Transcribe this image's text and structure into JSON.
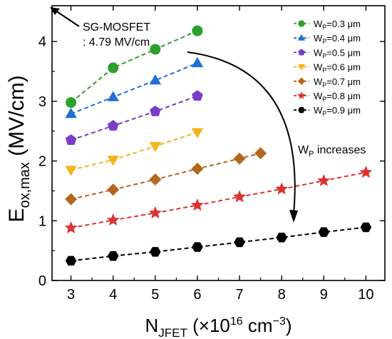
{
  "chart_data": {
    "type": "scatter",
    "ylabel": "E",
    "ylabel_sub": "ox,max",
    "ylabel_unit": " (MV/cm)",
    "xlabel": "N",
    "xlabel_sub": "JFET",
    "xlabel_unit_prefix": " (×10",
    "xlabel_unit_exp": "16",
    "xlabel_unit_mid": " cm",
    "xlabel_unit_exp2": "−3",
    "xlabel_unit_suffix": ")",
    "xlim": [
      2.55,
      10.45
    ],
    "ylim": [
      0,
      4.6
    ],
    "x_ticks": [
      3,
      4,
      5,
      6,
      7,
      8,
      9,
      10
    ],
    "y_ticks": [
      0,
      1,
      2,
      3,
      4
    ],
    "annotation": {
      "line1": "SG-MOSFET",
      "line2": ": 4.79 MV/cm"
    },
    "arrow_label": "W",
    "arrow_label_sub": "P",
    "arrow_label_rest": " increases",
    "legend_prefix": "W",
    "legend_sub": "P",
    "series": [
      {
        "name": "=0.3 μm",
        "color": "#2ca02c",
        "marker": "circle",
        "x": [
          3,
          4,
          5,
          6
        ],
        "y": [
          2.98,
          3.56,
          3.87,
          4.18
        ]
      },
      {
        "name": "=0.4 μm",
        "color": "#1f6fd1",
        "marker": "triangle-up",
        "x": [
          3,
          4,
          5,
          6
        ],
        "y": [
          2.79,
          3.07,
          3.35,
          3.64
        ]
      },
      {
        "name": "=0.5 μm",
        "color": "#7a3cc8",
        "marker": "pentagon",
        "x": [
          3,
          4,
          5,
          6
        ],
        "y": [
          2.35,
          2.59,
          2.83,
          3.09
        ]
      },
      {
        "name": "=0.6 μm",
        "color": "#f2b51a",
        "marker": "triangle-down",
        "x": [
          3,
          4,
          5,
          6
        ],
        "y": [
          1.85,
          2.02,
          2.25,
          2.48
        ]
      },
      {
        "name": "=0.7 μm",
        "color": "#b5661e",
        "marker": "diamond",
        "x": [
          3,
          4,
          5,
          6,
          7,
          7.5
        ],
        "y": [
          1.36,
          1.52,
          1.69,
          1.87,
          2.04,
          2.13
        ]
      },
      {
        "name": "=0.8 μm",
        "color": "#d93434",
        "marker": "star",
        "x": [
          3,
          4,
          5,
          6,
          7,
          8,
          9,
          10
        ],
        "y": [
          0.88,
          1.01,
          1.13,
          1.26,
          1.4,
          1.53,
          1.67,
          1.81
        ]
      },
      {
        "name": "=0.9 μm",
        "color": "#000000",
        "marker": "hexagon",
        "x": [
          3,
          4,
          5,
          6,
          7,
          8,
          9,
          10
        ],
        "y": [
          0.33,
          0.41,
          0.48,
          0.56,
          0.64,
          0.72,
          0.81,
          0.89
        ]
      }
    ]
  }
}
